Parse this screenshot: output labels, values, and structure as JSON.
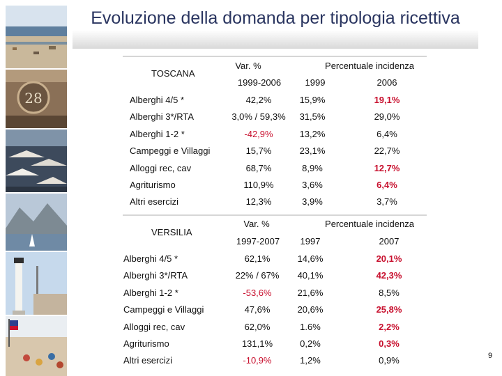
{
  "title": "Evoluzione della domanda per tipologia ricettiva",
  "page_number": "9",
  "colors": {
    "title": "#2a3560",
    "highlight": "#c8102e"
  },
  "toscana": {
    "region": "TOSCANA",
    "var_header": "Var. %",
    "inc_header": "Percentuale incidenza",
    "period": "1999-2006",
    "year_a": "1999",
    "year_b": "2006",
    "rows": [
      {
        "label": "Alberghi 4/5 *",
        "var": "42,2%",
        "a": "15,9%",
        "b": "19,1%"
      },
      {
        "label": "Alberghi 3*/RTA",
        "var": "3,0% / 59,3%",
        "a": "31,5%",
        "b": "29,0%"
      },
      {
        "label": "Alberghi 1-2 *",
        "var": "-42,9%",
        "a": "13,2%",
        "b": "6,4%"
      },
      {
        "label": "Campeggi e Villaggi",
        "var": "15,7%",
        "a": "23,1%",
        "b": "22,7%"
      },
      {
        "label": "Alloggi rec, cav",
        "var": "68,7%",
        "a": "8,9%",
        "b": "12,7%"
      },
      {
        "label": "Agriturismo",
        "var": "110,9%",
        "a": "3,6%",
        "b": "6,4%"
      },
      {
        "label": "Altri esercizi",
        "var": "12,3%",
        "a": "3,9%",
        "b": "3,7%"
      }
    ]
  },
  "versilia": {
    "region": "VERSILIA",
    "var_header": "Var. %",
    "inc_header": "Percentuale incidenza",
    "period": "1997-2007",
    "year_a": "1997",
    "year_b": "2007",
    "rows": [
      {
        "label": "Alberghi 4/5 *",
        "var": "62,1%",
        "a": "14,6%",
        "b": "20,1%"
      },
      {
        "label": "Alberghi 3*/RTA",
        "var": "22% / 67%",
        "a": "40,1%",
        "b": "42,3%"
      },
      {
        "label": "Alberghi 1-2 *",
        "var": "-53,6%",
        "a": "21,6%",
        "b": "8,5%"
      },
      {
        "label": "Campeggi e Villaggi",
        "var": "47,6%",
        "a": "20,6%",
        "b": "25,8%"
      },
      {
        "label": "Alloggi rec, cav",
        "var": "62,0%",
        "a": "1.6%",
        "b": "2,2%"
      },
      {
        "label": "Agriturismo",
        "var": "131,1%",
        "a": "0,2%",
        "b": "0,3%"
      },
      {
        "label": "Altri esercizi",
        "var": "-10,9%",
        "a": "1,2%",
        "b": "0,9%"
      }
    ]
  }
}
